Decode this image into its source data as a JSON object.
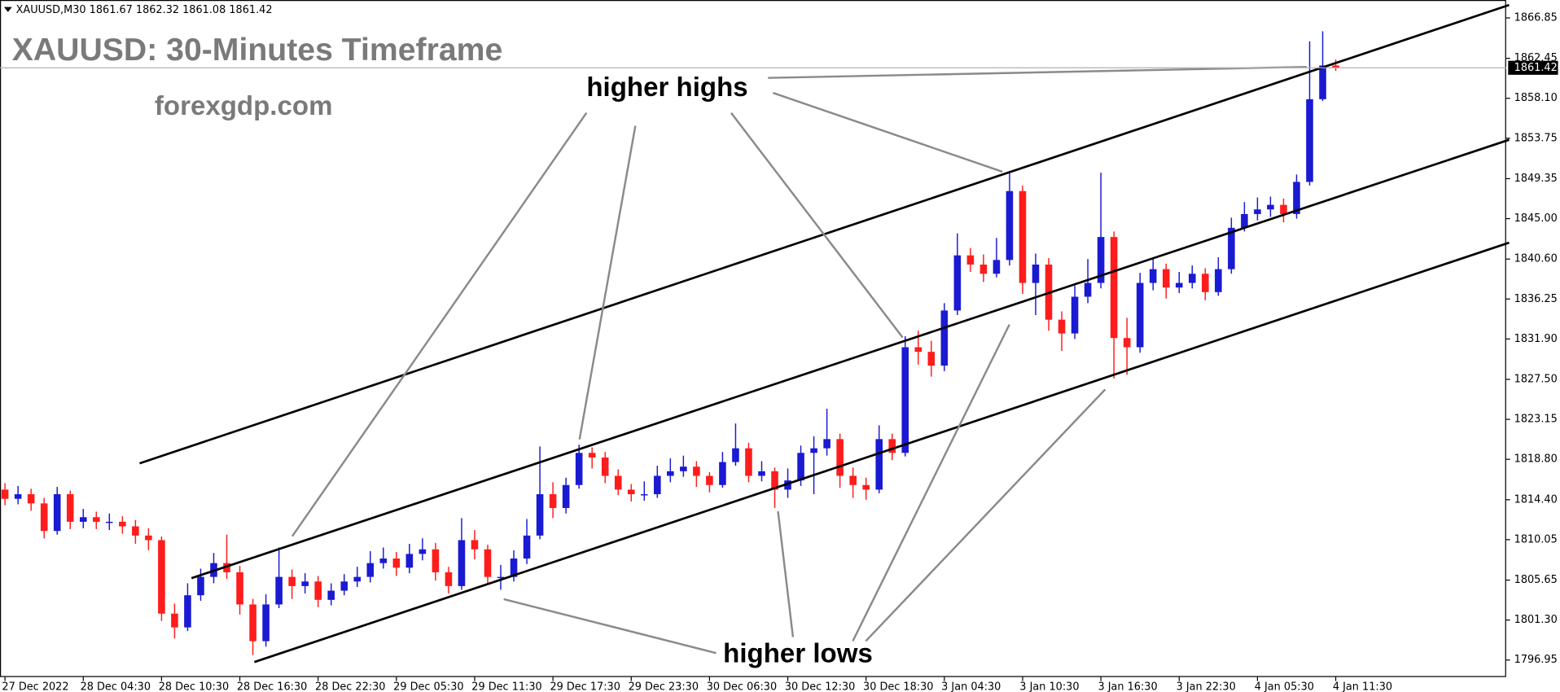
{
  "chart_data": {
    "type": "candlestick",
    "header": "XAUUSD,M30  1861.67 1862.32 1861.08 1861.42",
    "title": "XAUUSD: 30-Minutes Timeframe",
    "watermark": "forexgdp.com",
    "annotations": [
      "higher highs",
      "higher lows"
    ],
    "last_price": 1861.42,
    "up_color": "#1a1ad2",
    "down_color": "#ff1c1c",
    "ylim": [
      1795.1,
      1868.8
    ],
    "yticks": [
      1866.85,
      1862.45,
      {
        "value": 1858.1,
        "label": "1858.10"
      },
      1853.75,
      1849.35,
      {
        "value": 1845,
        "label": "1845.00"
      },
      {
        "value": 1840.6,
        "label": "1840.60"
      },
      1836.25,
      {
        "value": 1831.9,
        "label": "1831.90"
      },
      {
        "value": 1827.5,
        "label": "1827.50"
      },
      1823.15,
      {
        "value": 1818.8,
        "label": "1818.80"
      },
      {
        "value": 1814.4,
        "label": "1814.40"
      },
      1810.05,
      1805.65,
      {
        "value": 1801.3,
        "label": "1801.30"
      },
      1796.95
    ],
    "categories": [
      "27 Dec 2022",
      null,
      null,
      null,
      null,
      null,
      "28 Dec 04:30",
      null,
      null,
      null,
      null,
      null,
      "28 Dec 10:30",
      null,
      null,
      null,
      null,
      null,
      "28 Dec 16:30",
      null,
      null,
      null,
      null,
      null,
      "28 Dec 22:30",
      null,
      null,
      null,
      null,
      null,
      "29 Dec 05:30",
      null,
      null,
      null,
      null,
      null,
      "29 Dec 11:30",
      null,
      null,
      null,
      null,
      null,
      "29 Dec 17:30",
      null,
      null,
      null,
      null,
      null,
      "29 Dec 23:30",
      null,
      null,
      null,
      null,
      null,
      "30 Dec 06:30",
      null,
      null,
      null,
      null,
      null,
      "30 Dec 12:30",
      null,
      null,
      null,
      null,
      null,
      "30 Dec 18:30",
      null,
      null,
      null,
      null,
      null,
      "3 Jan 04:30",
      null,
      null,
      null,
      null,
      null,
      "3 Jan 10:30",
      null,
      null,
      null,
      null,
      null,
      "3 Jan 16:30",
      null,
      null,
      null,
      null,
      null,
      "3 Jan 22:30",
      null,
      null,
      null,
      null,
      null,
      "4 Jan 05:30",
      null,
      null,
      null,
      null,
      null,
      "4 Jan 11:30"
    ],
    "open": [
      1815.5,
      1814.5,
      1815,
      1814,
      1811,
      1815,
      1812,
      1812.5,
      1812,
      1812,
      1811.5,
      1810.5,
      1810,
      1802,
      1800.5,
      1804,
      1806,
      1807.5,
      1806.5,
      1803,
      1799,
      1803,
      1806,
      1805,
      1805.5,
      1803.5,
      1804.5,
      1805.5,
      1806,
      1807.5,
      1808,
      1807,
      1808.5,
      1809,
      1806.5,
      1805,
      1810,
      1809,
      1806,
      1806,
      1808,
      1810.5,
      1815,
      1813.5,
      1816,
      1819.5,
      1819,
      1817,
      1815.5,
      1815,
      1815,
      1817,
      1817.5,
      1818,
      1817,
      1816,
      1818.5,
      1820,
      1817,
      1817.5,
      1815.5,
      1816.5,
      1819.5,
      1820,
      1821,
      1817,
      1816,
      1815.5,
      1821,
      1819.5,
      1831,
      1830.5,
      1829,
      1835,
      1841,
      1840,
      1839,
      1840.5,
      1848,
      1838,
      1840,
      1834,
      1832.5,
      1836.5,
      1838,
      1843,
      1832,
      1831,
      1838,
      1839.5,
      1837.5,
      1838,
      1839,
      1837,
      1839.5,
      1844,
      1845.5,
      1846,
      1846.5,
      1845.5,
      1849,
      1858,
      1861.67
    ],
    "high": [
      1816.2,
      1815.9,
      1815.6,
      1814.6,
      1815.8,
      1815.4,
      1813.4,
      1813.1,
      1812.9,
      1812.6,
      1812.2,
      1811.3,
      1810.4,
      1803.1,
      1805.3,
      1806.9,
      1808.6,
      1810.6,
      1807.2,
      1803.6,
      1804.1,
      1809.2,
      1806.8,
      1806.4,
      1806.1,
      1805.3,
      1806.3,
      1807.1,
      1808.8,
      1809.2,
      1808.7,
      1809.6,
      1810.2,
      1809.7,
      1807.1,
      1812.4,
      1811.1,
      1809.5,
      1807.3,
      1808.9,
      1812.3,
      1820.2,
      1816.3,
      1816.8,
      1820.4,
      1820.1,
      1819.6,
      1817.7,
      1816.1,
      1816.4,
      1818.1,
      1818.9,
      1819.2,
      1818.6,
      1817.4,
      1819.6,
      1822.7,
      1820.6,
      1818.6,
      1817.9,
      1817.8,
      1820.3,
      1821.3,
      1824.3,
      1821.6,
      1817.9,
      1816.8,
      1822.5,
      1821.6,
      1832.2,
      1832.8,
      1831.7,
      1835.8,
      1843.4,
      1841.8,
      1841.1,
      1842.9,
      1850.2,
      1848.6,
      1841.2,
      1840.7,
      1834.9,
      1837.7,
      1840.6,
      1850,
      1843.6,
      1834.2,
      1839.1,
      1840.6,
      1840.1,
      1839.2,
      1839.9,
      1839.6,
      1840.8,
      1845.1,
      1846.8,
      1847.3,
      1847.4,
      1847.2,
      1849.8,
      1864.3,
      1865.4,
      1862.32
    ],
    "low": [
      1813.8,
      1813.9,
      1813.2,
      1810.2,
      1810.6,
      1811.2,
      1811.3,
      1811.2,
      1811.1,
      1810.7,
      1809.6,
      1808.9,
      1801.2,
      1799.3,
      1800.1,
      1803.4,
      1805.3,
      1805.8,
      1801.9,
      1797.5,
      1798.4,
      1802.6,
      1803.6,
      1804.2,
      1802.7,
      1802.9,
      1804,
      1804.9,
      1805.4,
      1806.9,
      1806.1,
      1806.4,
      1807.8,
      1805.6,
      1804.2,
      1804.6,
      1807.9,
      1805.2,
      1804.6,
      1805.5,
      1807.4,
      1810.1,
      1812.4,
      1812.9,
      1815.6,
      1817.8,
      1816.2,
      1814.9,
      1814.2,
      1814.3,
      1814.6,
      1816.3,
      1816.9,
      1815.8,
      1815.2,
      1815.7,
      1818.1,
      1816.3,
      1816.4,
      1813.5,
      1814.6,
      1815.9,
      1815,
      1819.2,
      1815.7,
      1814.6,
      1814.4,
      1815.1,
      1818.7,
      1819.1,
      1829.1,
      1827.8,
      1828.4,
      1834.5,
      1839.2,
      1838.1,
      1838.6,
      1839.9,
      1836.8,
      1834.5,
      1832.8,
      1830.6,
      1831.9,
      1835.8,
      1837.4,
      1827.6,
      1828,
      1830.4,
      1837.2,
      1836.3,
      1836.9,
      1837.4,
      1836.1,
      1836.6,
      1839,
      1843.6,
      1844.8,
      1845.2,
      1844.6,
      1845,
      1848.6,
      1857.8,
      1861.08
    ],
    "close": [
      1814.5,
      1815,
      1814,
      1811,
      1815,
      1812,
      1812.5,
      1812,
      1812,
      1811.5,
      1810.5,
      1810,
      1802,
      1800.5,
      1804,
      1806,
      1807.5,
      1806.5,
      1803,
      1799,
      1803,
      1806,
      1805,
      1805.5,
      1803.5,
      1804.5,
      1805.5,
      1806,
      1807.5,
      1808,
      1807,
      1808.5,
      1809,
      1806.5,
      1805,
      1810,
      1809,
      1806,
      1806,
      1808,
      1810.5,
      1815,
      1813.5,
      1816,
      1819.5,
      1819,
      1817,
      1815.5,
      1815,
      1815,
      1817,
      1817.5,
      1818,
      1817,
      1816,
      1818.5,
      1820,
      1817,
      1817.5,
      1815.5,
      1816.5,
      1819.5,
      1820,
      1821,
      1817,
      1816,
      1815.5,
      1821,
      1819.5,
      1831,
      1830.5,
      1829,
      1835,
      1841,
      1840,
      1839,
      1840.5,
      1848,
      1838,
      1840,
      1834,
      1832.5,
      1836.5,
      1838,
      1843,
      1832,
      1831,
      1838,
      1839.5,
      1837.5,
      1838,
      1839,
      1837,
      1839.5,
      1844,
      1845.5,
      1846,
      1846.5,
      1845.5,
      1849,
      1858,
      1861.67,
      1861.42
    ]
  }
}
